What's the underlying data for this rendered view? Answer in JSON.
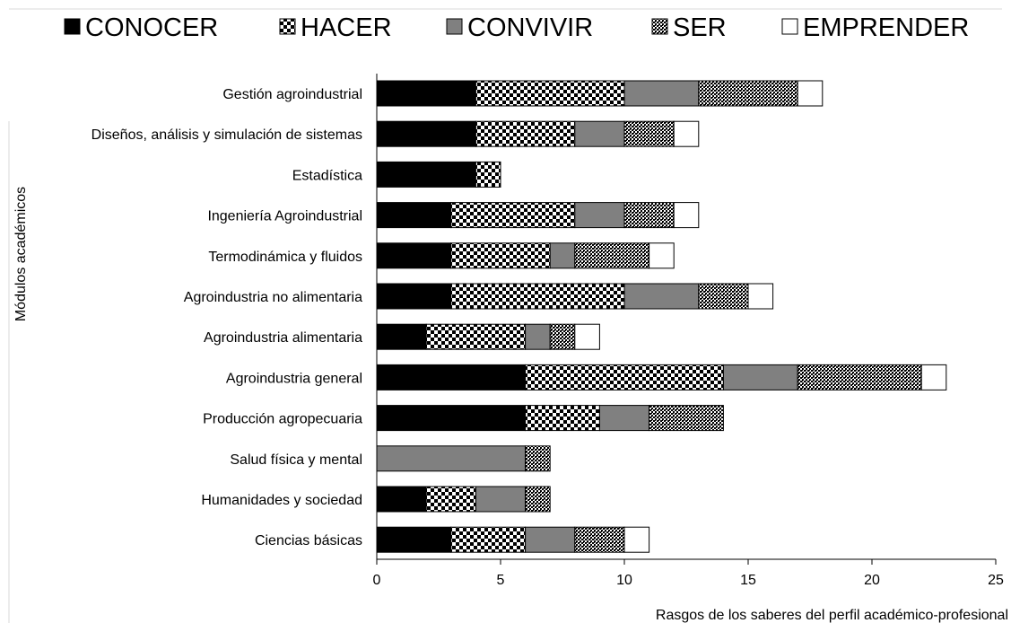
{
  "chart_data": {
    "type": "bar",
    "orientation": "horizontal",
    "stacked": true,
    "xlabel": "Rasgos de los saberes del perfil académico-profesional",
    "ylabel": "Módulos académicos",
    "xlim": [
      0,
      25
    ],
    "xticks": [
      0,
      5,
      10,
      15,
      20,
      25
    ],
    "grid": false,
    "legend_position": "top",
    "categories": [
      "Gestión agroindustrial",
      "Diseños, análisis y simulación de sistemas",
      "Estadística",
      "Ingeniería Agroindustrial",
      "Termodinámica y fluidos",
      "Agroindustria no alimentaria",
      "Agroindustria alimentaria",
      "Agroindustria general",
      "Producción agropecuaria",
      "Salud física y mental",
      "Humanidades y sociedad",
      "Ciencias básicas"
    ],
    "series": [
      {
        "name": "CONOCER",
        "fill": "black",
        "values": [
          4,
          4,
          4,
          3,
          3,
          3,
          2,
          6,
          6,
          0,
          2,
          3
        ]
      },
      {
        "name": "HACER",
        "fill": "checker",
        "values": [
          6,
          4,
          1,
          5,
          4,
          7,
          4,
          8,
          3,
          0,
          2,
          3
        ]
      },
      {
        "name": "CONVIVIR",
        "fill": "gray",
        "values": [
          3,
          2,
          0,
          2,
          1,
          3,
          1,
          3,
          2,
          6,
          2,
          2
        ]
      },
      {
        "name": "SER",
        "fill": "dense",
        "values": [
          4,
          2,
          0,
          2,
          3,
          2,
          1,
          5,
          3,
          1,
          1,
          2
        ]
      },
      {
        "name": "EMPRENDER",
        "fill": "white",
        "values": [
          1,
          1,
          0,
          1,
          1,
          1,
          1,
          1,
          0,
          0,
          0,
          1
        ]
      }
    ]
  }
}
